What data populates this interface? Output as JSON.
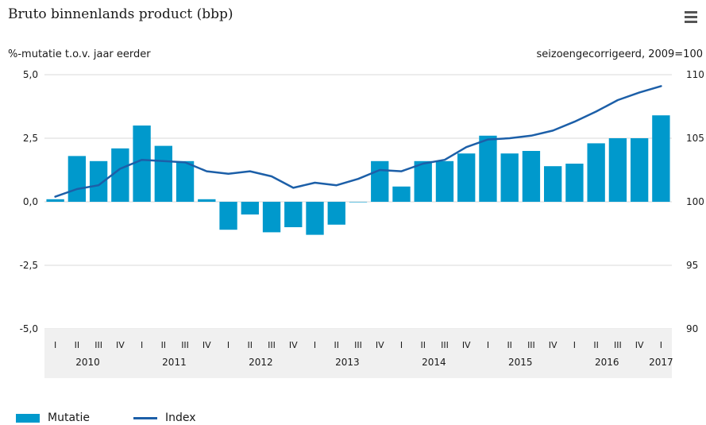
{
  "header": {
    "title": "Bruto binnenlands product (bbp)",
    "menu_icon": "hamburger-menu-icon"
  },
  "axes": {
    "left_label": "%-mutatie t.o.v. jaar eerder",
    "right_label": "seizoengecorrigeerd, 2009=100"
  },
  "legend": {
    "items": [
      {
        "label": "Mutatie",
        "color": "#0099cc",
        "kind": "bar"
      },
      {
        "label": "Index",
        "color": "#1c5fa8",
        "kind": "line"
      }
    ]
  },
  "chart_data": {
    "type": "bar",
    "title": "Bruto binnenlands product (bbp)",
    "ylabel": "%-mutatie t.o.v. jaar eerder",
    "y2label": "seizoengecorrigeerd, 2009=100",
    "ylim": [
      -5,
      5
    ],
    "y2lim": [
      90,
      110
    ],
    "yticks": [
      "5,0",
      "2,5",
      "0,0",
      "-2,5",
      "-5,0"
    ],
    "y2ticks": [
      "110",
      "105",
      "100",
      "95",
      "90"
    ],
    "quarter_labels": [
      "I",
      "II",
      "III",
      "IV",
      "I",
      "II",
      "III",
      "IV",
      "I",
      "II",
      "III",
      "IV",
      "I",
      "II",
      "III",
      "IV",
      "I",
      "II",
      "III",
      "IV",
      "I",
      "II",
      "III",
      "IV",
      "I",
      "II",
      "III",
      "IV",
      "I"
    ],
    "years": [
      {
        "label": "2010",
        "start": 0,
        "span": 4
      },
      {
        "label": "2011",
        "start": 4,
        "span": 4
      },
      {
        "label": "2012",
        "start": 8,
        "span": 4
      },
      {
        "label": "2013",
        "start": 12,
        "span": 4
      },
      {
        "label": "2014",
        "start": 16,
        "span": 4
      },
      {
        "label": "2015",
        "start": 20,
        "span": 4
      },
      {
        "label": "2016",
        "start": 24,
        "span": 4
      },
      {
        "label": "2017",
        "start": 28,
        "span": 1
      }
    ],
    "grid": true,
    "series": [
      {
        "name": "Mutatie",
        "kind": "bar",
        "axis": "left",
        "color": "#0099cc",
        "values": [
          0.1,
          1.8,
          1.6,
          2.1,
          3.0,
          2.2,
          1.6,
          0.1,
          -1.1,
          -0.5,
          -1.2,
          -1.0,
          -1.3,
          -0.9,
          0.0,
          1.6,
          0.6,
          1.6,
          1.6,
          1.9,
          2.6,
          1.9,
          2.0,
          1.4,
          1.5,
          2.3,
          2.5,
          2.5,
          3.4
        ]
      },
      {
        "name": "Index",
        "kind": "line",
        "axis": "right",
        "color": "#1c5fa8",
        "values": [
          100.4,
          101.0,
          101.3,
          102.6,
          103.3,
          103.2,
          103.1,
          102.4,
          102.2,
          102.4,
          102.0,
          101.1,
          101.5,
          101.3,
          101.8,
          102.5,
          102.4,
          103.0,
          103.3,
          104.3,
          104.9,
          105.0,
          105.2,
          105.6,
          106.3,
          107.1,
          108.0,
          108.6,
          109.1
        ]
      }
    ]
  }
}
